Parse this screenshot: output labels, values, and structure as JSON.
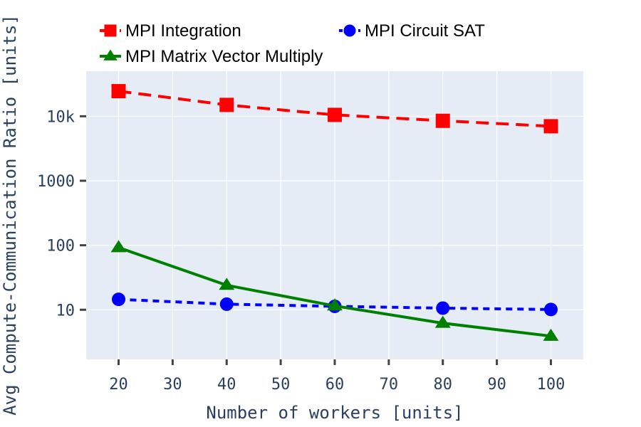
{
  "chart_data": {
    "type": "line",
    "title": "",
    "xlabel": "Number of workers [units]",
    "ylabel": "Avg Compute-Communication Ratio [units]",
    "x": [
      20,
      40,
      60,
      80,
      100
    ],
    "xlim": [
      14,
      106
    ],
    "x_ticks": [
      20,
      30,
      40,
      50,
      60,
      70,
      80,
      90,
      100
    ],
    "y_scale": "log",
    "ylim": [
      1.7,
      50000
    ],
    "y_ticks": [
      10,
      100,
      1000,
      10000
    ],
    "y_tick_labels": [
      "10",
      "100",
      "1000",
      "10k"
    ],
    "grid": true,
    "legend_position": "top",
    "plot_background": "#e5ecf6",
    "series": [
      {
        "name": "MPI Integration",
        "values": [
          24500,
          15000,
          10500,
          8500,
          7000
        ],
        "color": "#ff0000",
        "dash": "dash",
        "marker": "square"
      },
      {
        "name": "MPI Circuit SAT",
        "values": [
          14.5,
          12.2,
          11.3,
          10.6,
          10.1
        ],
        "color": "#0000ff",
        "dash": "dot",
        "marker": "circle"
      },
      {
        "name": "MPI Matrix Vector Multiply",
        "values": [
          92,
          24,
          11.5,
          6.2,
          3.9
        ],
        "color": "#008000",
        "dash": "solid",
        "marker": "triangle-up"
      }
    ]
  }
}
